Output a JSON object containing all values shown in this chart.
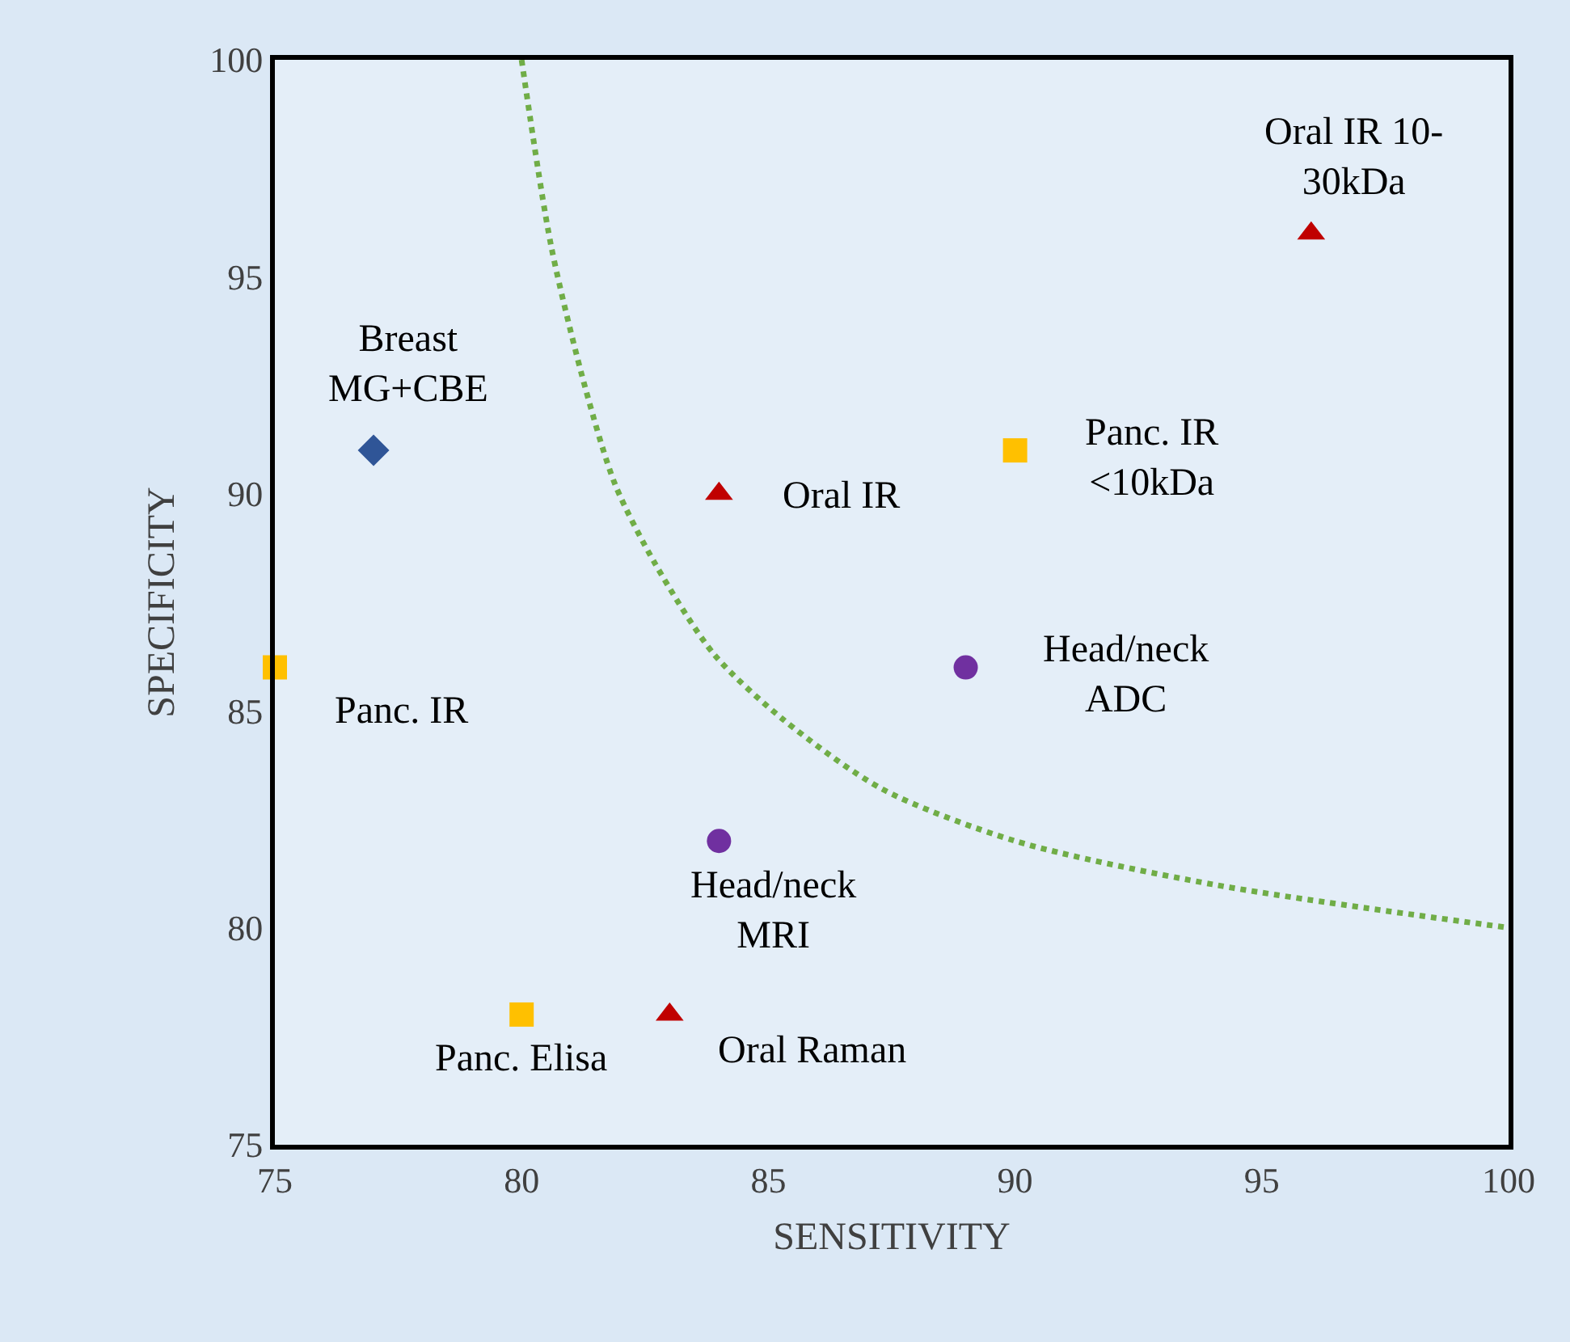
{
  "chart_data": {
    "type": "scatter",
    "xlabel": "SENSITIVITY",
    "ylabel": "SPECIFICITY",
    "xlim": [
      75,
      100
    ],
    "xticks": [
      75,
      80,
      85,
      90,
      95,
      100
    ],
    "ylim": [
      75,
      100
    ],
    "yticks": [
      75,
      80,
      85,
      90,
      95,
      100
    ],
    "grid": false,
    "series": [
      {
        "marker": "diamond",
        "color": "#2f5597",
        "x": [
          77
        ],
        "values": [
          91
        ]
      },
      {
        "marker": "square",
        "color": "#ffc000",
        "x": [
          75,
          90,
          80
        ],
        "values": [
          86,
          91,
          78
        ]
      },
      {
        "marker": "triangle",
        "color": "#c00000",
        "x": [
          84,
          83,
          96
        ],
        "values": [
          90,
          78,
          96
        ]
      },
      {
        "marker": "circle",
        "color": "#7030a0",
        "x": [
          89,
          84
        ],
        "values": [
          86,
          82
        ]
      },
      {
        "type": "line",
        "marker": "none",
        "line_style": "dotted",
        "color": "#70ad47",
        "x": [
          80,
          80.6,
          81.3,
          81.9,
          82.7,
          83.9,
          85.3,
          87.3,
          90,
          94,
          100
        ],
        "values": [
          100,
          95.7,
          92.4,
          90.2,
          88.4,
          86.3,
          84.8,
          83.2,
          82,
          81,
          80
        ]
      }
    ],
    "annotations": [
      {
        "text": "Breast\nMG+CBE",
        "x": 77,
        "y": 91
      },
      {
        "text": "Panc. IR",
        "x": 75,
        "y": 86
      },
      {
        "text": "Oral IR",
        "x": 84,
        "y": 90
      },
      {
        "text": "Panc. IR\n<10kDa",
        "x": 90,
        "y": 91
      },
      {
        "text": "Head/neck\nADC",
        "x": 89,
        "y": 86
      },
      {
        "text": "Head/neck\nMRI",
        "x": 84,
        "y": 82
      },
      {
        "text": "Panc. Elisa",
        "x": 80,
        "y": 78
      },
      {
        "text": "Oral Raman",
        "x": 83,
        "y": 78
      },
      {
        "text": "Oral IR 10-\n30kDa",
        "x": 96,
        "y": 96
      }
    ]
  }
}
